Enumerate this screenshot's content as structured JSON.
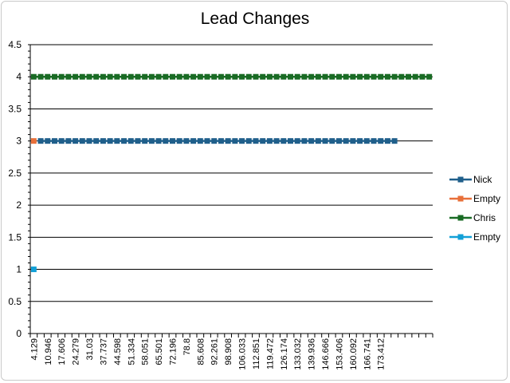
{
  "chart_data": {
    "type": "line",
    "title": "Lead Changes",
    "xlabel": "",
    "ylabel": "",
    "ylim": [
      0,
      4.5
    ],
    "yticks": [
      "0",
      "0.5",
      "1",
      "1.5",
      "2",
      "2.5",
      "3",
      "3.5",
      "4",
      "4.5"
    ],
    "xtick_labels": [
      "4.129",
      "10.946",
      "17.606",
      "24.279",
      "31.03",
      "37.737",
      "44.598",
      "51.334",
      "58.051",
      "65.501",
      "72.196",
      "78.8",
      "85.608",
      "92.261",
      "98.908",
      "106.033",
      "112.851",
      "119.472",
      "126.174",
      "133.032",
      "139.936",
      "146.666",
      "153.406",
      "160.092",
      "166.741",
      "173.412"
    ],
    "category_count": 58,
    "grid": true,
    "legend": "right",
    "series": [
      {
        "name": "Nick",
        "color": "#1f5f8b",
        "start_index": 1,
        "end_index": 52,
        "value": 3
      },
      {
        "name": "Empty",
        "color": "#e8703a",
        "start_index": 0,
        "end_index": 0,
        "value": 3
      },
      {
        "name": "Chris",
        "color": "#196b24",
        "start_index": 0,
        "end_index": 57,
        "value": 4
      },
      {
        "name": "Empty",
        "color": "#12a0d7",
        "start_index": 0,
        "end_index": 0,
        "value": 1
      }
    ]
  }
}
